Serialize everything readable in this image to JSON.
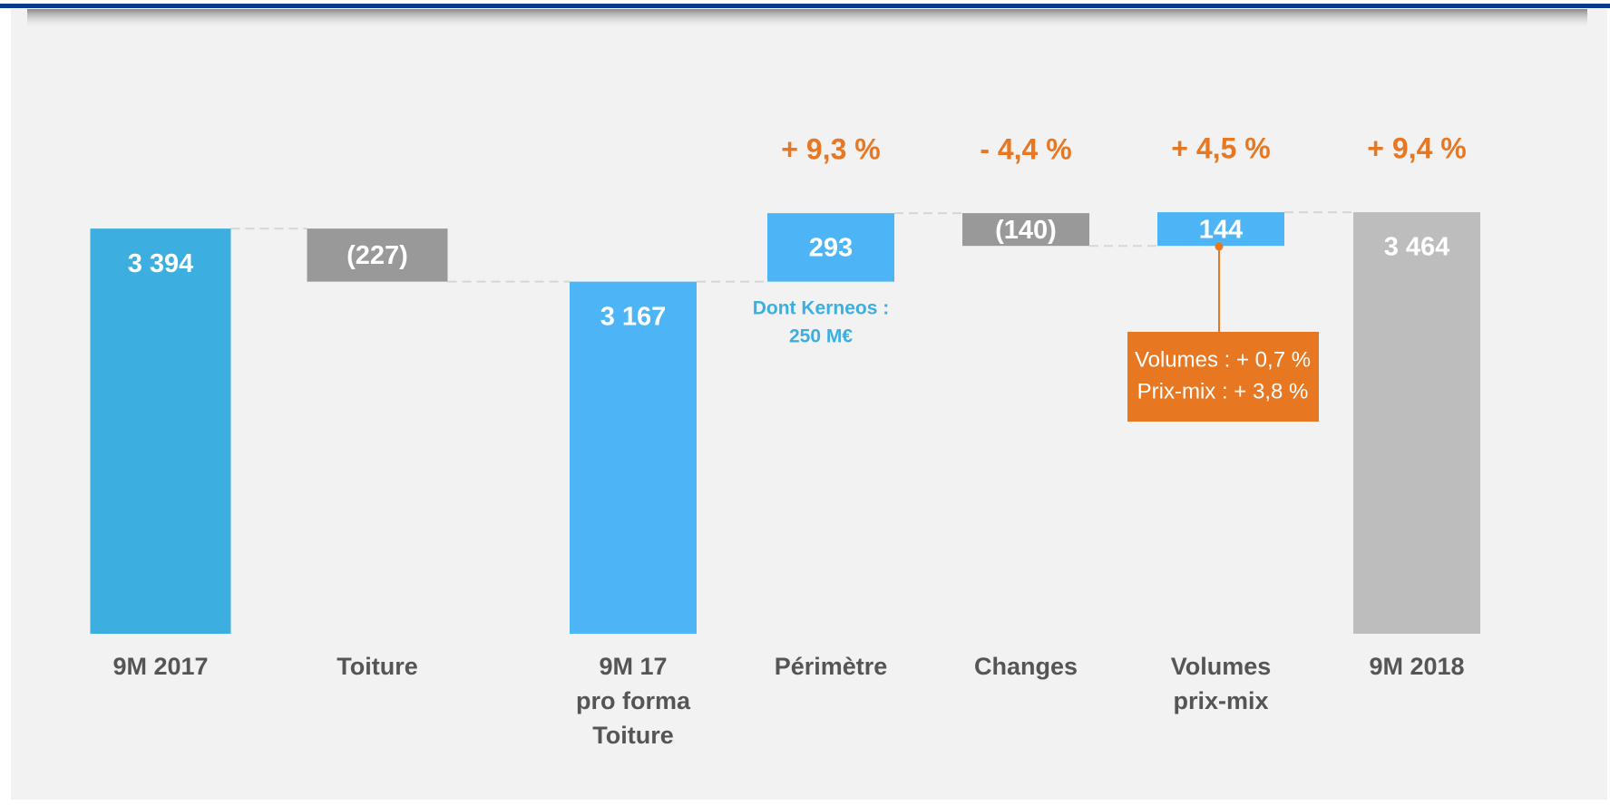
{
  "chart_data": {
    "type": "waterfall",
    "categories": [
      [
        "9M 2017"
      ],
      [
        "Toiture"
      ],
      [
        "9M 17",
        "pro forma",
        "Toiture"
      ],
      [
        "Périmètre"
      ],
      [
        "Changes"
      ],
      [
        "Volumes",
        "prix-mix"
      ],
      [
        "9M 2018"
      ]
    ],
    "values": [
      3394,
      -227,
      3167,
      293,
      -140,
      144,
      3464
    ],
    "value_labels": [
      "3 394",
      "(227)",
      "3 167",
      "293",
      "(140)",
      "144",
      "3 464"
    ],
    "kinds": [
      "total",
      "delta",
      "total",
      "delta",
      "delta",
      "delta",
      "total"
    ],
    "colors": [
      "#3daee0",
      "#999999",
      "#4db5f5",
      "#4db5f5",
      "#999999",
      "#4db5f5",
      "#bdbdbd"
    ],
    "change_labels": [
      null,
      null,
      null,
      "+ 9,3 %",
      "- 4,4 %",
      "+ 4,5 %",
      "+ 9,4 %"
    ],
    "ylim": [
      1661,
      3600
    ],
    "notes": {
      "kerneos": [
        "Dont Kerneos :",
        "250 M€"
      ],
      "volumes_box": [
        "Volumes : + 0,7 %",
        "Prix-mix : + 3,8 %"
      ]
    }
  }
}
